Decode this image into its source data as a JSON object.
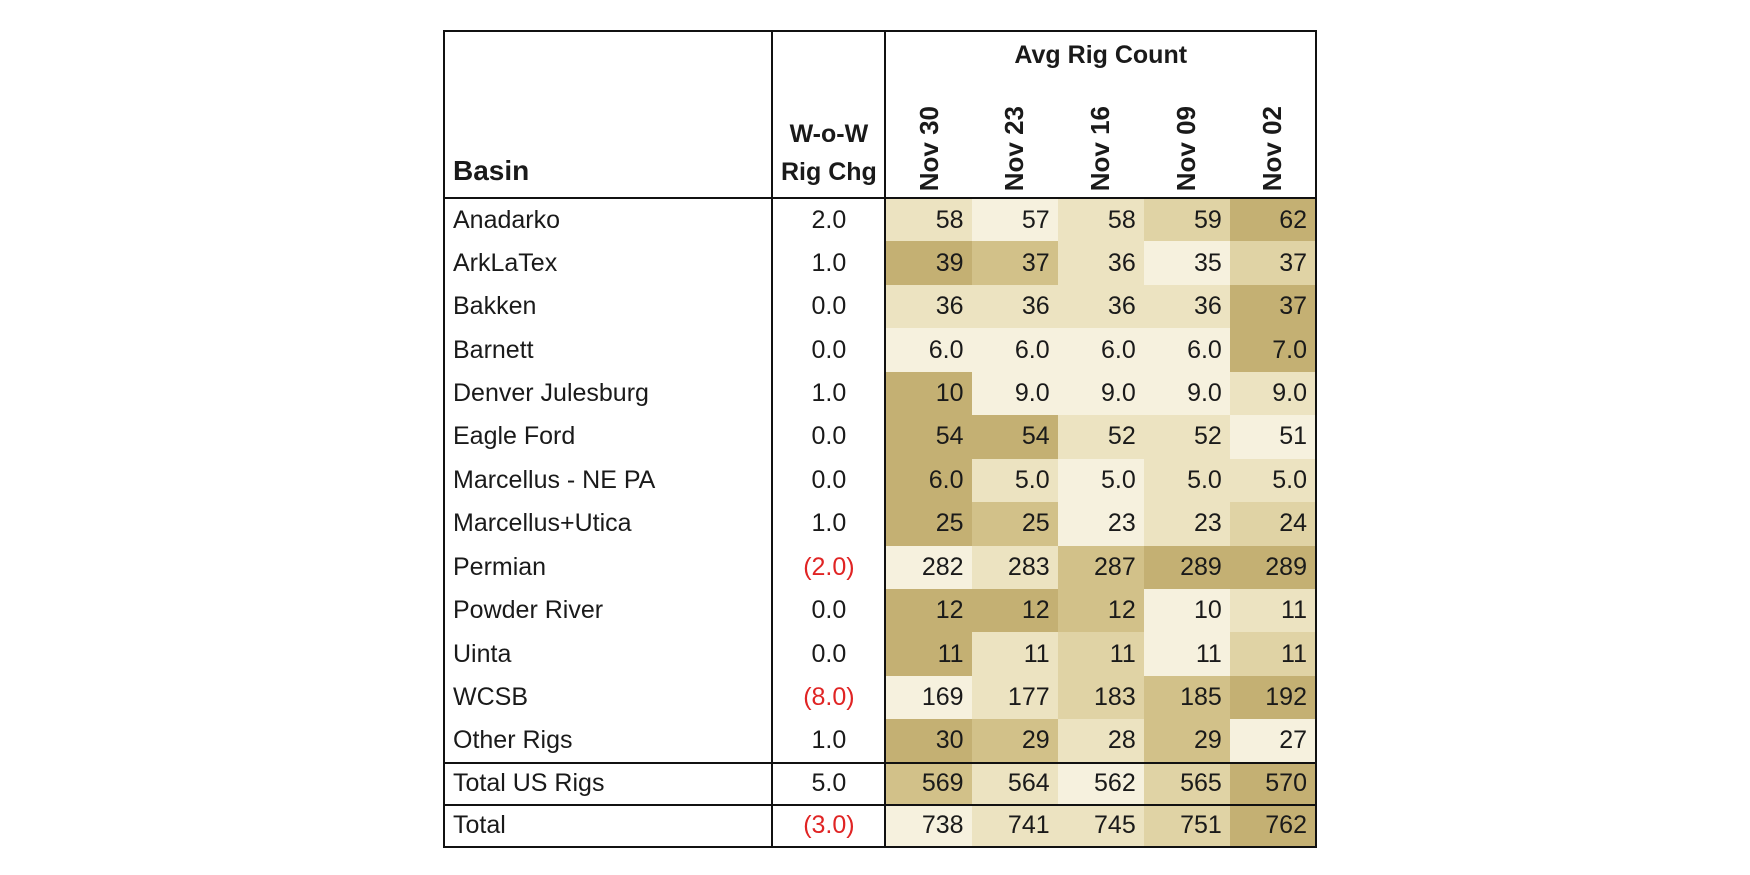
{
  "table": {
    "header": {
      "basin_label": "Basin",
      "chg_label_line1": "W-o-W",
      "chg_label_line2": "Rig Chg",
      "group_label": "Avg Rig Count",
      "dates": [
        "Nov 30",
        "Nov 23",
        "Nov 16",
        "Nov 09",
        "Nov 02"
      ]
    },
    "rows": [
      {
        "basin": "Anadarko",
        "chg": "2.0",
        "values": [
          "58",
          "57",
          "58",
          "59",
          "62"
        ],
        "shades": [
          1,
          0,
          1,
          2,
          4
        ]
      },
      {
        "basin": "ArkLaTex",
        "chg": "1.0",
        "values": [
          "39",
          "37",
          "36",
          "35",
          "37"
        ],
        "shades": [
          4,
          3,
          1,
          0,
          2
        ]
      },
      {
        "basin": "Bakken",
        "chg": "0.0",
        "values": [
          "36",
          "36",
          "36",
          "36",
          "37"
        ],
        "shades": [
          1,
          1,
          1,
          1,
          4
        ]
      },
      {
        "basin": "Barnett",
        "chg": "0.0",
        "values": [
          "6.0",
          "6.0",
          "6.0",
          "6.0",
          "7.0"
        ],
        "shades": [
          0,
          0,
          0,
          0,
          4
        ]
      },
      {
        "basin": "Denver Julesburg",
        "chg": "1.0",
        "values": [
          "10",
          "9.0",
          "9.0",
          "9.0",
          "9.0"
        ],
        "shades": [
          4,
          0,
          0,
          0,
          1
        ]
      },
      {
        "basin": "Eagle Ford",
        "chg": "0.0",
        "values": [
          "54",
          "54",
          "52",
          "52",
          "51"
        ],
        "shades": [
          4,
          4,
          1,
          1,
          0
        ]
      },
      {
        "basin": "Marcellus - NE PA",
        "chg": "0.0",
        "values": [
          "6.0",
          "5.0",
          "5.0",
          "5.0",
          "5.0"
        ],
        "shades": [
          4,
          1,
          0,
          1,
          1
        ]
      },
      {
        "basin": "Marcellus+Utica",
        "chg": "1.0",
        "values": [
          "25",
          "25",
          "23",
          "23",
          "24"
        ],
        "shades": [
          4,
          3,
          0,
          1,
          2
        ]
      },
      {
        "basin": "Permian",
        "chg": "(2.0)",
        "values": [
          "282",
          "283",
          "287",
          "289",
          "289"
        ],
        "shades": [
          0,
          1,
          3,
          4,
          4
        ]
      },
      {
        "basin": "Powder River",
        "chg": "0.0",
        "values": [
          "12",
          "12",
          "12",
          "10",
          "11"
        ],
        "shades": [
          4,
          4,
          3,
          0,
          1
        ]
      },
      {
        "basin": "Uinta",
        "chg": "0.0",
        "values": [
          "11",
          "11",
          "11",
          "11",
          "11"
        ],
        "shades": [
          4,
          1,
          2,
          0,
          2
        ]
      },
      {
        "basin": "WCSB",
        "chg": "(8.0)",
        "values": [
          "169",
          "177",
          "183",
          "185",
          "192"
        ],
        "shades": [
          0,
          1,
          2,
          3,
          4
        ]
      },
      {
        "basin": "Other Rigs",
        "chg": "1.0",
        "values": [
          "30",
          "29",
          "28",
          "29",
          "27"
        ],
        "shades": [
          4,
          3,
          1,
          3,
          0
        ]
      }
    ],
    "total_us": {
      "basin": "Total US Rigs",
      "chg": "5.0",
      "values": [
        "569",
        "564",
        "562",
        "565",
        "570"
      ],
      "shades": [
        3,
        1,
        0,
        2,
        4
      ]
    },
    "grand_total": {
      "basin": "Total",
      "chg": "(3.0)",
      "values": [
        "738",
        "741",
        "745",
        "751",
        "762"
      ],
      "shades": [
        0,
        1,
        1,
        2,
        4
      ]
    },
    "negative_color": "#e02424",
    "shade_palette": [
      "#f6f1de",
      "#ece3c1",
      "#e0d3a5",
      "#d2c189",
      "#c4b073"
    ]
  }
}
